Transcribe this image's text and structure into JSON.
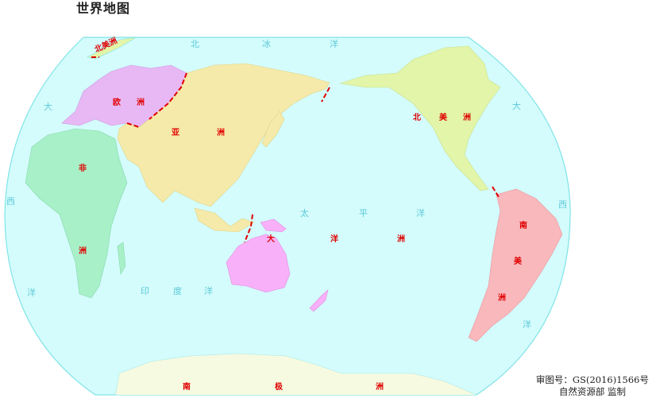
{
  "title": "世界地图",
  "colors": {
    "ocean": "#d4fcfc",
    "border": "#7fe3e8",
    "europe": "#e8b8f4",
    "asia": "#f5eaaa",
    "africa": "#a8f0c8",
    "north_america": "#e2f5a8",
    "south_america": "#f8b8bc",
    "oceania": "#f8b0f8",
    "antarctica": "#f6fae0",
    "continent_label": "#e00000",
    "ocean_label": "#5cc8d8",
    "boundary_line": "#e00000"
  },
  "oceans": {
    "arctic": [
      "北",
      "冰",
      "洋"
    ],
    "atlantic_west": [
      "大",
      "西",
      "洋"
    ],
    "indian": [
      "印",
      "度",
      "洋"
    ],
    "pacific": [
      "太",
      "平",
      "洋"
    ],
    "atlantic_east": [
      "大",
      "西",
      "洋"
    ]
  },
  "continents": {
    "europe": [
      "欧",
      "洲"
    ],
    "asia": [
      "亚",
      "洲"
    ],
    "africa": [
      "非",
      "洲"
    ],
    "north_america": [
      "北",
      "美",
      "洲"
    ],
    "north_america_small": "北美洲",
    "south_america": [
      "南",
      "美",
      "洲"
    ],
    "oceania": [
      "大",
      "洋",
      "洲"
    ],
    "antarctica": [
      "南",
      "极",
      "洲"
    ]
  },
  "credit": {
    "approval_number": "审图号：GS(2016)1566号",
    "authority": "自然资源部  监制"
  }
}
